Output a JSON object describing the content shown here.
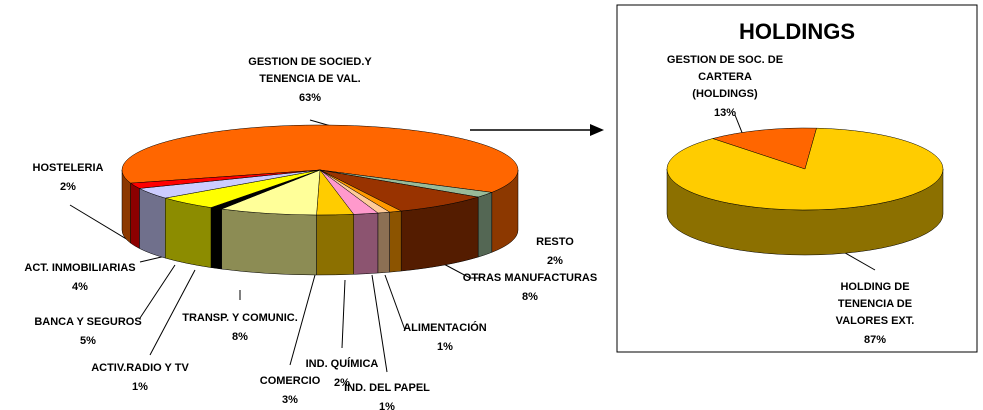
{
  "chart_data": [
    {
      "type": "pie3d",
      "categories": [
        "GESTION DE SOCIED.Y\nTENENCIA DE VAL.",
        "RESTO",
        "OTRAS MANUFACTURAS",
        "ALIMENTACIÓN",
        "IND. DEL PAPEL",
        "IND. QUÍMICA",
        "COMERCIO",
        "TRANSP. Y COMUNIC.",
        "ACTIV.RADIO Y TV",
        "BANCA Y SEGUROS",
        "ACT. INMOBILIARIAS",
        "HOSTELERIA"
      ],
      "values": [
        63,
        2,
        8,
        1,
        1,
        2,
        3,
        8,
        1,
        5,
        4,
        2
      ],
      "value_labels": [
        "63%",
        "2%",
        "8%",
        "1%",
        "1%",
        "2%",
        "3%",
        "8%",
        "1%",
        "5%",
        "4%",
        "2%"
      ],
      "colors": [
        "#ff6600",
        "#99bb99",
        "#993300",
        "#ff9900",
        "#ffcc99",
        "#ff99cc",
        "#ffcc00",
        "#ffff99",
        "#000000",
        "#ffff00",
        "#ccccff",
        "#ff0000"
      ]
    },
    {
      "type": "pie3d",
      "title": "HOLDINGS",
      "categories": [
        "GESTION DE SOC. DE\nCARTERA\n(HOLDINGS)",
        "HOLDING DE\nTENENCIA DE\nVALORES EXT."
      ],
      "values": [
        13,
        87
      ],
      "value_labels": [
        "13%",
        "87%"
      ],
      "colors": [
        "#ff6600",
        "#ffcc00"
      ]
    }
  ]
}
